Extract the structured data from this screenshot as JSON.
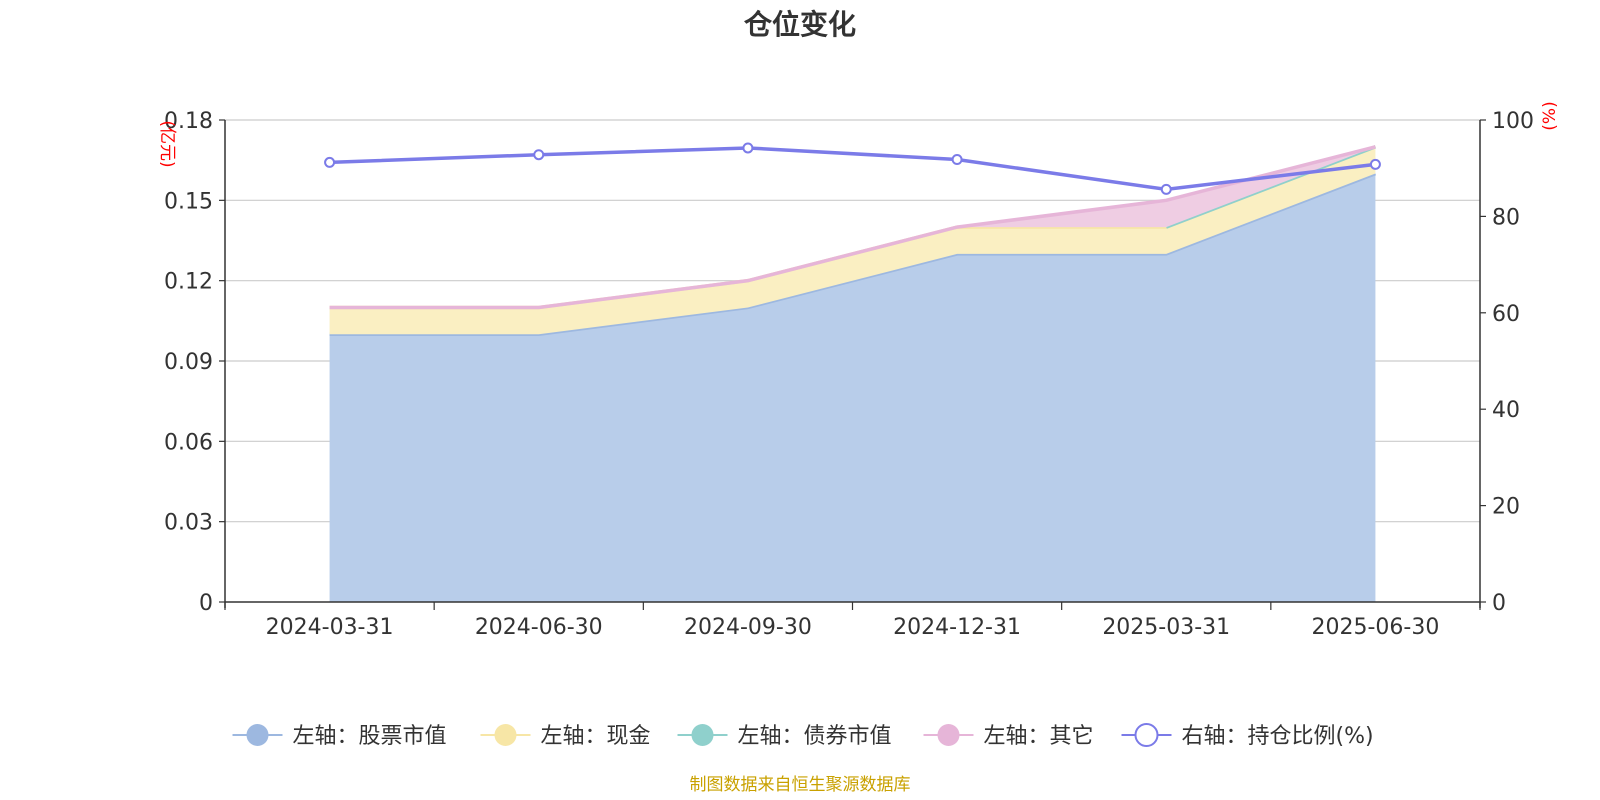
{
  "chart_data": {
    "type": "area",
    "title": "仓位变化",
    "categories": [
      "2024-03-31",
      "2024-06-30",
      "2024-09-30",
      "2024-12-31",
      "2025-03-31",
      "2025-06-30"
    ],
    "left_axis": {
      "unit": "(亿元)",
      "ylim": [
        0,
        0.18
      ],
      "ticks": [
        "0",
        "0.03",
        "0.06",
        "0.09",
        "0.12",
        "0.15",
        "0.18"
      ]
    },
    "right_axis": {
      "unit": "(%)",
      "ylim": [
        0,
        100
      ],
      "ticks": [
        "0",
        "20",
        "40",
        "60",
        "80",
        "100"
      ]
    },
    "stacked": true,
    "grid": true,
    "legend_position": "bottom",
    "series": [
      {
        "name": "左轴：股票市值",
        "axis": "left",
        "type": "area",
        "color": "#9db8e0",
        "fill": "#b8cdea",
        "values": [
          0.1,
          0.1,
          0.11,
          0.13,
          0.13,
          0.16
        ]
      },
      {
        "name": "左轴：现金",
        "axis": "left",
        "type": "area",
        "color": "#f7e6a6",
        "fill": "#faefc2",
        "values": [
          0.01,
          0.01,
          0.01,
          0.01,
          0.01,
          0.01
        ]
      },
      {
        "name": "左轴：债券市值",
        "axis": "left",
        "type": "area",
        "color": "#8fd0cc",
        "fill": "#bfe4e2",
        "values": [
          null,
          null,
          null,
          null,
          0,
          0
        ]
      },
      {
        "name": "左轴：其它",
        "axis": "left",
        "type": "area",
        "color": "#e6b5d8",
        "fill": "#efcde3",
        "values": [
          0,
          0,
          0,
          0,
          0.01,
          0
        ]
      },
      {
        "name": "右轴：持仓比例(%)",
        "axis": "right",
        "type": "line",
        "color": "#7b7be8",
        "fill": "#ffffff",
        "values": [
          91.2,
          92.8,
          94.2,
          91.8,
          85.6,
          90.8
        ]
      }
    ]
  },
  "footer": {
    "source": "制图数据来自恒生聚源数据库"
  }
}
